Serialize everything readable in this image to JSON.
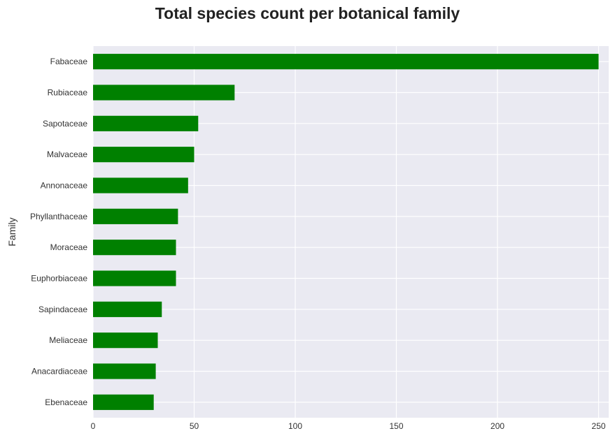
{
  "chart_data": {
    "type": "bar",
    "orientation": "horizontal",
    "title": "Total species count per botanical family",
    "xlabel": "",
    "ylabel": "Family",
    "categories": [
      "Fabaceae",
      "Rubiaceae",
      "Sapotaceae",
      "Malvaceae",
      "Annonaceae",
      "Phyllanthaceae",
      "Moraceae",
      "Euphorbiaceae",
      "Sapindaceae",
      "Meliaceae",
      "Anacardiaceae",
      "Ebenaceae"
    ],
    "values": [
      250,
      70,
      52,
      50,
      47,
      42,
      41,
      41,
      34,
      32,
      31,
      30
    ],
    "xlim": [
      0,
      255
    ],
    "xticks": [
      0,
      50,
      100,
      150,
      200,
      250
    ],
    "grid": true,
    "bar_color": "#008000",
    "plot_background": "#eaeaf2",
    "grid_color": "#ffffff"
  }
}
